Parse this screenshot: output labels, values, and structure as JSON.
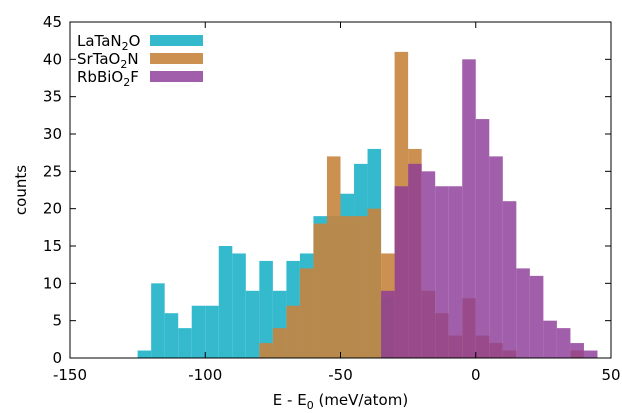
{
  "chart_data": {
    "type": "bar",
    "subtype": "overlaid-histogram",
    "xlabel": "E - E0 (meV/atom)",
    "xlabel_parts": {
      "pre": "E - E",
      "sub": "0",
      "post": " (meV/atom)"
    },
    "ylabel": "counts",
    "xlim": [
      -150,
      50
    ],
    "ylim": [
      0,
      45
    ],
    "xticks": [
      -150,
      -100,
      -50,
      0,
      50
    ],
    "xtick_labels": [
      "-150",
      "-100",
      "-50",
      "0",
      "50"
    ],
    "yticks": [
      0,
      5,
      10,
      15,
      20,
      25,
      30,
      35,
      40,
      45
    ],
    "ytick_labels": [
      "0",
      "5",
      "10",
      "15",
      "20",
      "25",
      "30",
      "35",
      "40",
      "45"
    ],
    "bin_width": 5,
    "grid": false,
    "legend_position": "top-left",
    "series": [
      {
        "name": "LaTaN2O",
        "name_parts": [
          {
            "t": "LaTaN"
          },
          {
            "t": "2",
            "sub": true
          },
          {
            "t": "O"
          }
        ],
        "color": "#1fb3c8",
        "opacity": 0.9,
        "bins": [
          {
            "x0": -125,
            "x1": -120,
            "count": 1
          },
          {
            "x0": -120,
            "x1": -115,
            "count": 10
          },
          {
            "x0": -115,
            "x1": -110,
            "count": 6
          },
          {
            "x0": -110,
            "x1": -105,
            "count": 4
          },
          {
            "x0": -105,
            "x1": -100,
            "count": 7
          },
          {
            "x0": -100,
            "x1": -95,
            "count": 7
          },
          {
            "x0": -95,
            "x1": -90,
            "count": 15
          },
          {
            "x0": -90,
            "x1": -85,
            "count": 14
          },
          {
            "x0": -85,
            "x1": -80,
            "count": 9
          },
          {
            "x0": -80,
            "x1": -75,
            "count": 13
          },
          {
            "x0": -75,
            "x1": -70,
            "count": 9
          },
          {
            "x0": -70,
            "x1": -65,
            "count": 13
          },
          {
            "x0": -65,
            "x1": -60,
            "count": 14
          },
          {
            "x0": -60,
            "x1": -55,
            "count": 19
          },
          {
            "x0": -55,
            "x1": -50,
            "count": 19
          },
          {
            "x0": -50,
            "x1": -45,
            "count": 22
          },
          {
            "x0": -45,
            "x1": -40,
            "count": 26
          },
          {
            "x0": -40,
            "x1": -35,
            "count": 28
          },
          {
            "x0": -35,
            "x1": -30,
            "count": 8
          }
        ]
      },
      {
        "name": "SrTaO2N",
        "name_parts": [
          {
            "t": "SrTaO"
          },
          {
            "t": "2",
            "sub": true
          },
          {
            "t": "N"
          }
        ],
        "color": "#c6843e",
        "opacity": 0.9,
        "bins": [
          {
            "x0": -80,
            "x1": -75,
            "count": 2
          },
          {
            "x0": -75,
            "x1": -70,
            "count": 4
          },
          {
            "x0": -70,
            "x1": -65,
            "count": 7
          },
          {
            "x0": -65,
            "x1": -60,
            "count": 12
          },
          {
            "x0": -60,
            "x1": -55,
            "count": 18
          },
          {
            "x0": -55,
            "x1": -50,
            "count": 27
          },
          {
            "x0": -50,
            "x1": -45,
            "count": 19
          },
          {
            "x0": -45,
            "x1": -40,
            "count": 19
          },
          {
            "x0": -40,
            "x1": -35,
            "count": 20
          },
          {
            "x0": -35,
            "x1": -30,
            "count": 14
          },
          {
            "x0": -30,
            "x1": -25,
            "count": 41
          },
          {
            "x0": -25,
            "x1": -20,
            "count": 28
          },
          {
            "x0": -20,
            "x1": -15,
            "count": 9
          },
          {
            "x0": -15,
            "x1": -10,
            "count": 6
          },
          {
            "x0": -10,
            "x1": -5,
            "count": 3
          },
          {
            "x0": -5,
            "x1": 0,
            "count": 8
          },
          {
            "x0": 0,
            "x1": 5,
            "count": 3
          },
          {
            "x0": 5,
            "x1": 10,
            "count": 2
          },
          {
            "x0": 10,
            "x1": 15,
            "count": 1
          },
          {
            "x0": 15,
            "x1": 20,
            "count": 0
          },
          {
            "x0": 20,
            "x1": 25,
            "count": 0
          },
          {
            "x0": 25,
            "x1": 30,
            "count": 0
          },
          {
            "x0": 30,
            "x1": 35,
            "count": 0
          },
          {
            "x0": 35,
            "x1": 40,
            "count": 1
          }
        ]
      },
      {
        "name": "RbBiO2F",
        "name_parts": [
          {
            "t": "RbBiO"
          },
          {
            "t": "2",
            "sub": true
          },
          {
            "t": "F"
          }
        ],
        "color": "#8c3a97",
        "opacity": 0.82,
        "bins": [
          {
            "x0": -35,
            "x1": -30,
            "count": 9
          },
          {
            "x0": -30,
            "x1": -25,
            "count": 23
          },
          {
            "x0": -25,
            "x1": -20,
            "count": 26
          },
          {
            "x0": -20,
            "x1": -15,
            "count": 25
          },
          {
            "x0": -15,
            "x1": -10,
            "count": 23
          },
          {
            "x0": -10,
            "x1": -5,
            "count": 23
          },
          {
            "x0": -5,
            "x1": 0,
            "count": 40
          },
          {
            "x0": 0,
            "x1": 5,
            "count": 32
          },
          {
            "x0": 5,
            "x1": 10,
            "count": 27
          },
          {
            "x0": 10,
            "x1": 15,
            "count": 21
          },
          {
            "x0": 15,
            "x1": 20,
            "count": 12
          },
          {
            "x0": 20,
            "x1": 25,
            "count": 11
          },
          {
            "x0": 25,
            "x1": 30,
            "count": 5
          },
          {
            "x0": 30,
            "x1": 35,
            "count": 4
          },
          {
            "x0": 35,
            "x1": 40,
            "count": 2
          },
          {
            "x0": 40,
            "x1": 45,
            "count": 1
          }
        ]
      }
    ]
  }
}
